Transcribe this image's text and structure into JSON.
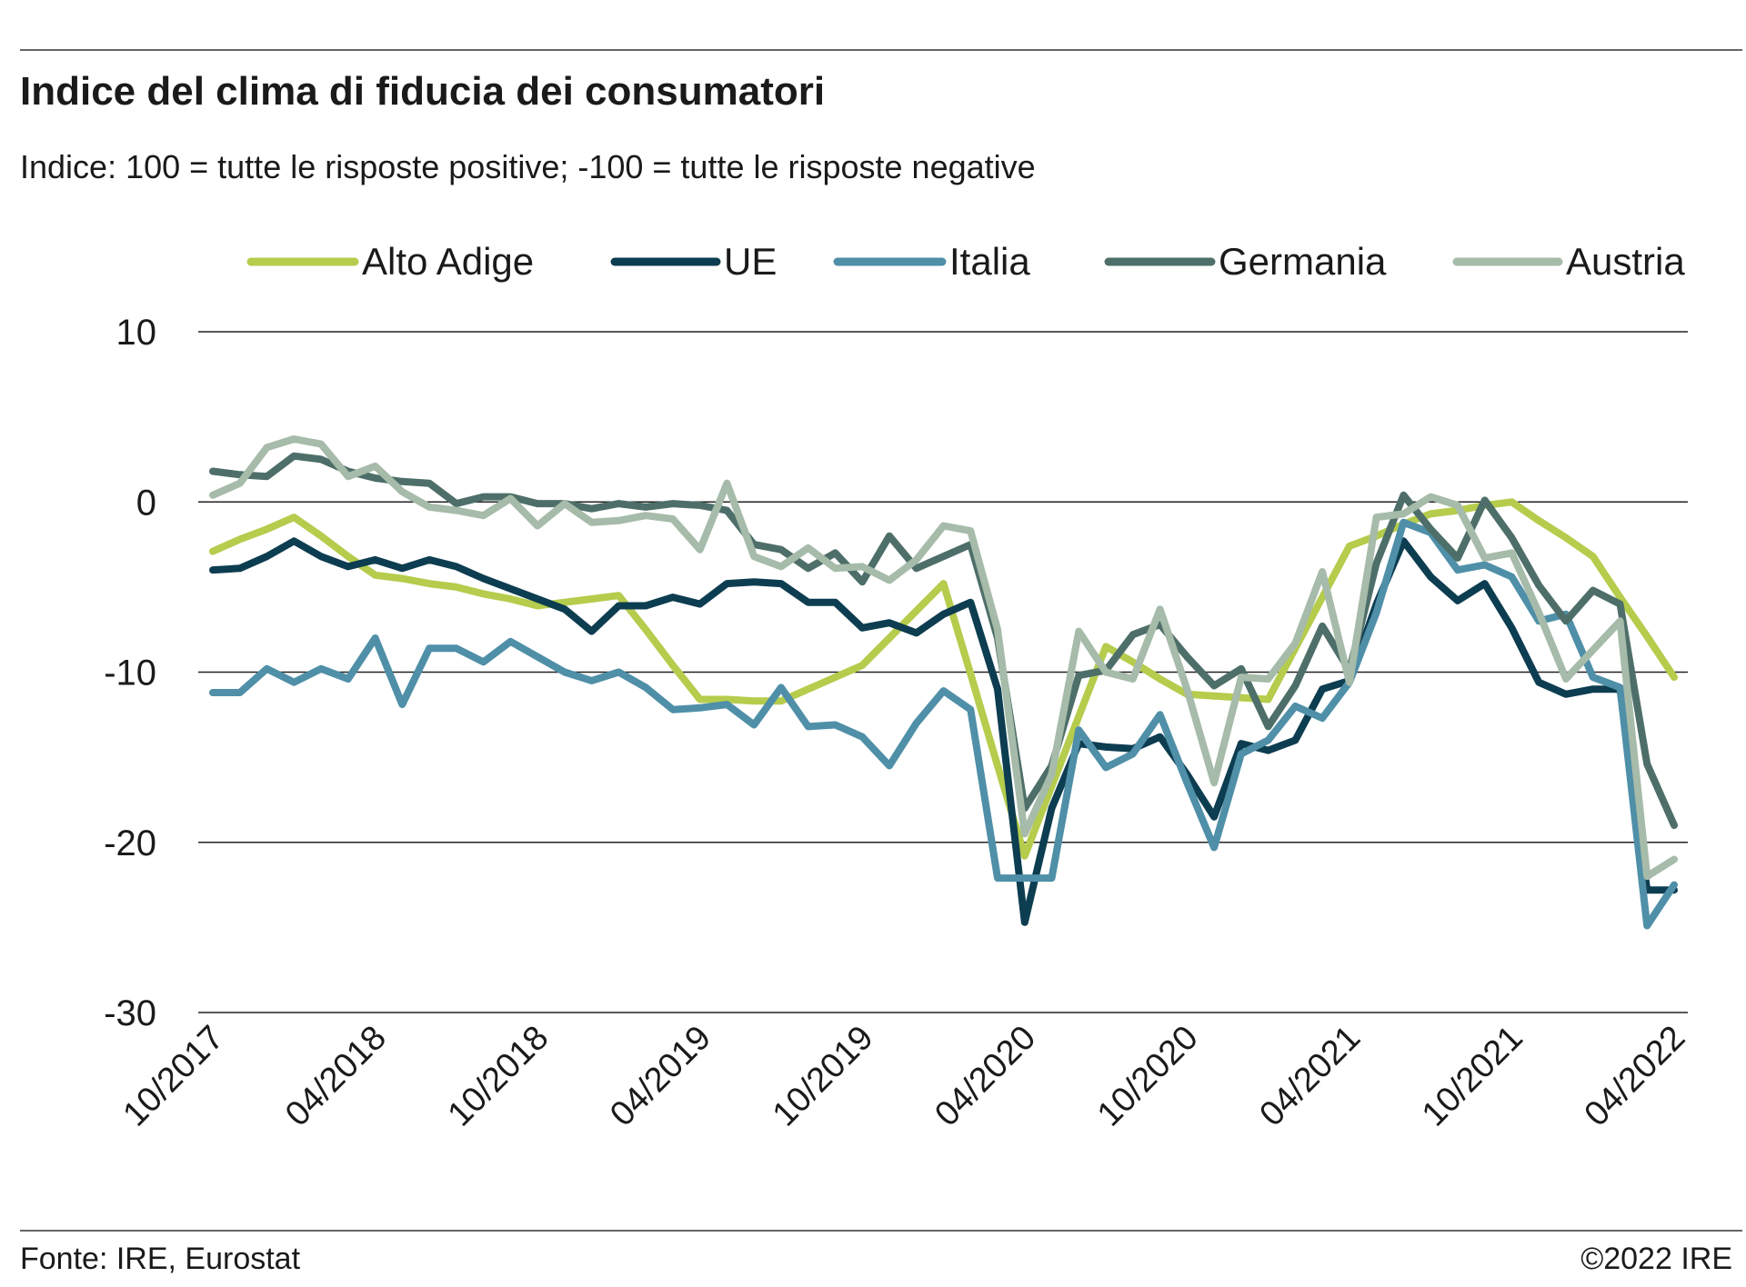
{
  "chart_data": {
    "type": "line",
    "title": "Indice del clima di fiducia dei consumatori",
    "subtitle": "Indice: 100 = tutte le risposte positive; -100 =  tutte le risposte negative",
    "source": "Fonte: IRE, Eurostat",
    "copyright": "©2022 IRE",
    "categories": [
      "10/2017",
      null,
      null,
      null,
      null,
      null,
      "04/2018",
      null,
      null,
      null,
      null,
      null,
      "10/2018",
      null,
      null,
      null,
      null,
      null,
      "04/2019",
      null,
      null,
      null,
      null,
      null,
      "10/2019",
      null,
      null,
      null,
      null,
      null,
      "04/2020",
      null,
      null,
      null,
      null,
      null,
      "10/2020",
      null,
      null,
      null,
      null,
      null,
      "04/2021",
      null,
      null,
      null,
      null,
      null,
      "10/2021",
      null,
      null,
      null,
      null,
      null,
      "04/2022"
    ],
    "ylim": [
      -30,
      10
    ],
    "yticks": [
      -30,
      -20,
      -10,
      0,
      10
    ],
    "grid": true,
    "legend": "top",
    "series": [
      {
        "name": "Alto Adige",
        "color": "#b5cc4c",
        "values": [
          -2.9,
          -2.2,
          -1.6,
          -0.9,
          -2.0,
          -3.2,
          -4.3,
          -4.5,
          -4.8,
          -5.0,
          -5.4,
          -5.7,
          -6.1,
          -5.9,
          -5.7,
          -5.5,
          -7.5,
          -9.6,
          -11.6,
          -11.6,
          -11.7,
          -11.7,
          -11.0,
          -10.3,
          -9.6,
          -8.0,
          -6.4,
          -4.8,
          -10.1,
          -15.5,
          -20.8,
          -16.7,
          -12.6,
          -8.5,
          -9.4,
          -10.4,
          -11.3,
          -11.4,
          -11.5,
          -11.6,
          -8.6,
          -5.6,
          -2.6,
          -2.0,
          -1.3,
          -0.7,
          -0.5,
          -0.2,
          0.0,
          -1.1,
          -2.1,
          -3.2,
          -5.6,
          -7.9,
          -10.3
        ]
      },
      {
        "name": "UE",
        "color": "#0d3d50",
        "values": [
          -4.0,
          -3.9,
          -3.2,
          -2.3,
          -3.2,
          -3.8,
          -3.4,
          -3.9,
          -3.4,
          -3.8,
          -4.5,
          -5.1,
          -5.7,
          -6.3,
          -7.6,
          -6.1,
          -6.1,
          -5.6,
          -6.0,
          -4.8,
          -4.7,
          -4.8,
          -5.9,
          -5.9,
          -7.4,
          -7.1,
          -7.7,
          -6.6,
          -5.9,
          -11.0,
          -24.7,
          -18.0,
          -14.2,
          -14.4,
          -14.5,
          -13.8,
          -16.0,
          -18.5,
          -14.2,
          -14.6,
          -14.0,
          -11.0,
          -10.5,
          -6.0,
          -2.3,
          -4.4,
          -5.8,
          -4.8,
          -7.4,
          -10.6,
          -11.3,
          -11.0,
          -11.0,
          -22.8,
          -22.8
        ]
      },
      {
        "name": "Italia",
        "color": "#4f8fa8",
        "values": [
          -11.2,
          -11.2,
          -9.8,
          -10.6,
          -9.8,
          -10.4,
          -8.0,
          -11.9,
          -8.6,
          -8.6,
          -9.4,
          -8.2,
          -9.1,
          -10.0,
          -10.5,
          -10.0,
          -10.9,
          -12.2,
          -12.1,
          -11.9,
          -13.1,
          -10.9,
          -13.2,
          -13.1,
          -13.8,
          -15.5,
          -13.0,
          -11.1,
          -12.2,
          -22.1,
          -22.1,
          -22.1,
          -13.4,
          -15.6,
          -14.8,
          -12.5,
          -16.5,
          -20.3,
          -14.8,
          -14.0,
          -12.0,
          -12.7,
          -10.6,
          -6.5,
          -1.2,
          -1.8,
          -4.0,
          -3.7,
          -4.4,
          -7.0,
          -6.6,
          -10.3,
          -10.9,
          -24.9,
          -22.5
        ]
      },
      {
        "name": "Germania",
        "color": "#4e6f69",
        "values": [
          1.8,
          1.6,
          1.5,
          2.7,
          2.5,
          1.8,
          1.4,
          1.2,
          1.1,
          -0.1,
          0.3,
          0.3,
          -0.1,
          -0.1,
          -0.4,
          -0.1,
          -0.3,
          -0.1,
          -0.2,
          -0.5,
          -2.5,
          -2.8,
          -3.9,
          -3.0,
          -4.7,
          -2.0,
          -3.9,
          -3.2,
          -2.5,
          -8.0,
          -18.0,
          -15.5,
          -10.2,
          -9.9,
          -7.8,
          -7.2,
          -9.1,
          -10.8,
          -9.8,
          -13.2,
          -10.8,
          -7.3,
          -9.9,
          -3.6,
          0.4,
          -1.6,
          -3.3,
          0.1,
          -2.1,
          -4.9,
          -7.0,
          -5.2,
          -6.0,
          -15.4,
          -19.0
        ]
      },
      {
        "name": "Austria",
        "color": "#a6bba9",
        "values": [
          0.4,
          1.1,
          3.2,
          3.7,
          3.4,
          1.5,
          2.1,
          0.6,
          -0.3,
          -0.5,
          -0.8,
          0.2,
          -1.4,
          -0.1,
          -1.2,
          -1.1,
          -0.8,
          -1.0,
          -2.8,
          1.1,
          -3.2,
          -3.8,
          -2.7,
          -3.9,
          -3.8,
          -4.6,
          -3.4,
          -1.4,
          -1.7,
          -7.5,
          -19.5,
          -16.0,
          -7.6,
          -10.0,
          -10.4,
          -6.3,
          -11.0,
          -16.5,
          -10.3,
          -10.4,
          -8.3,
          -4.1,
          -10.6,
          -0.9,
          -0.7,
          0.3,
          -0.2,
          -3.3,
          -3.0,
          -6.5,
          -10.4,
          -8.7,
          -7.0,
          -22.0,
          -21.0
        ]
      }
    ]
  }
}
